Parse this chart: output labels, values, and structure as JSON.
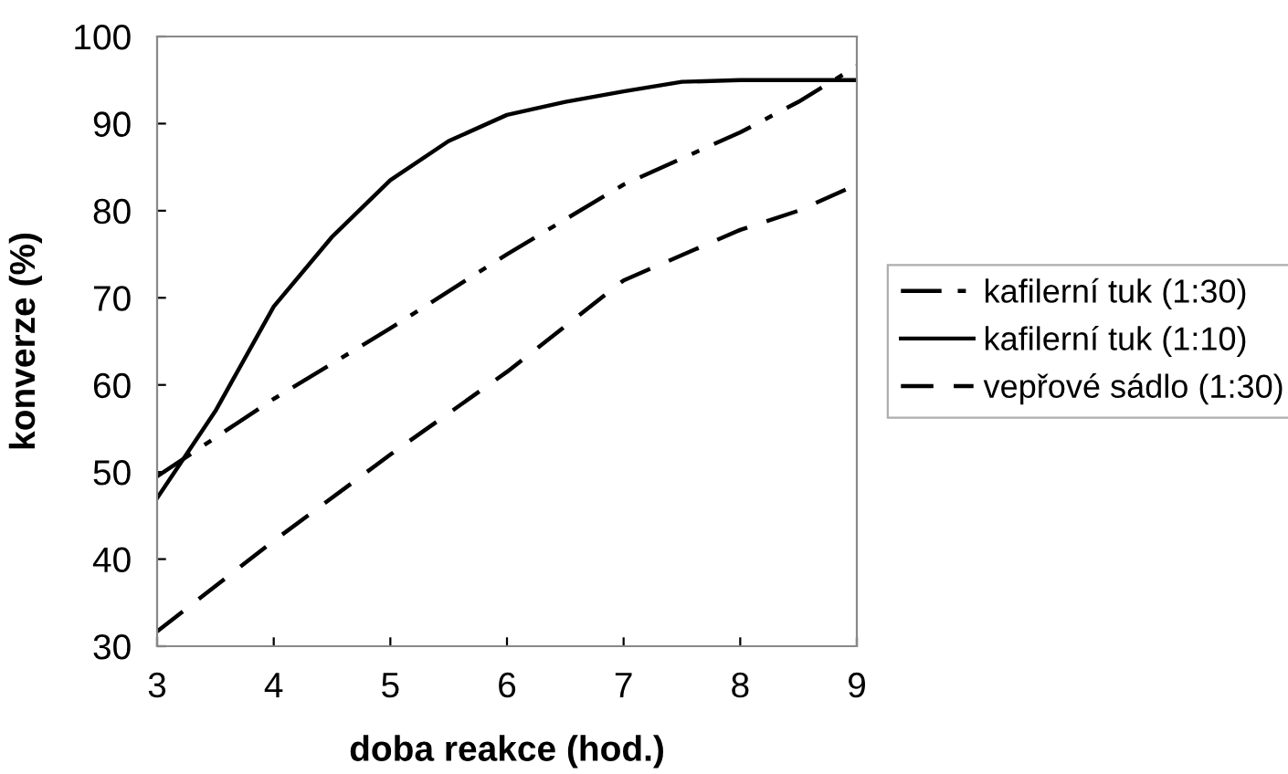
{
  "chart_data": {
    "type": "line",
    "xlabel": "doba reakce (hod.)",
    "ylabel": "konverze (%)",
    "xlim": [
      3,
      9
    ],
    "xticks": [
      3,
      4,
      5,
      6,
      7,
      8,
      9
    ],
    "ylim": [
      30,
      100
    ],
    "yticks": [
      30,
      40,
      50,
      60,
      70,
      80,
      90,
      100
    ],
    "grid": false,
    "legend": "right",
    "marker": "none",
    "series": [
      {
        "name": "kafilerní tuk (1:30)",
        "color": "#000000",
        "line_style": "dashdot",
        "x": [
          3,
          4,
          5,
          6,
          7,
          8,
          8.5,
          9
        ],
        "values": [
          49.5,
          58.4,
          66.5,
          75,
          83,
          89,
          92.5,
          96.6
        ]
      },
      {
        "name": "kafilerní tuk (1:10)",
        "color": "#000000",
        "line_style": "solid",
        "x": [
          3,
          3.5,
          4,
          4.5,
          5,
          5.5,
          6,
          6.5,
          7,
          7.5,
          8,
          8.5,
          9
        ],
        "values": [
          47,
          57,
          69,
          77,
          83.5,
          88,
          91,
          92.5,
          93.7,
          94.8,
          95,
          95,
          95
        ]
      },
      {
        "name": "vepřové sádlo (1:30)",
        "color": "#000000",
        "line_style": "dashed",
        "x": [
          3,
          4,
          5,
          6,
          7,
          8,
          8.5,
          9
        ],
        "values": [
          31.7,
          42.1,
          52,
          61.5,
          72,
          77.8,
          80,
          83
        ]
      }
    ]
  }
}
